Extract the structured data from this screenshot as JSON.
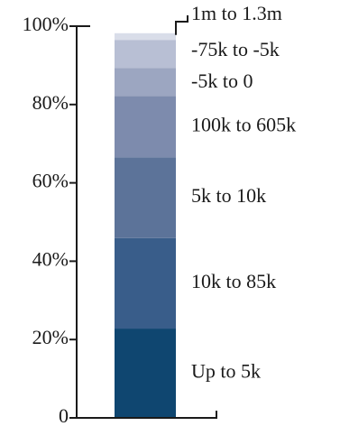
{
  "chart_data": {
    "type": "bar",
    "stacked": true,
    "percent": true,
    "title": "",
    "xlabel": "",
    "ylabel": "",
    "ylim": [
      0,
      100
    ],
    "yticks": [
      0,
      20,
      40,
      60,
      80,
      100
    ],
    "ytick_labels": [
      "0",
      "20%",
      "40%",
      "60%",
      "80%",
      "100%"
    ],
    "grid": false,
    "categories": [
      ""
    ],
    "series": [
      {
        "name": "Up to 5k",
        "values": [
          22.8
        ],
        "color": "#0f4670"
      },
      {
        "name": "10k to 85k",
        "values": [
          23.1
        ],
        "color": "#395d8a"
      },
      {
        "name": "5k to 10k",
        "values": [
          20.6
        ],
        "color": "#5c7399"
      },
      {
        "name": "100k to 605k",
        "values": [
          15.7
        ],
        "color": "#7d8bad"
      },
      {
        "name": "-5k to 0",
        "values": [
          7.1
        ],
        "color": "#9ca6c1"
      },
      {
        "name": "-75k to -5k",
        "values": [
          7.2
        ],
        "color": "#b8bfd4"
      },
      {
        "name": "1m to 1.3m",
        "values": [
          1.7
        ],
        "color": "#d9dde9"
      }
    ],
    "segment_labels_position": "right of bar"
  }
}
